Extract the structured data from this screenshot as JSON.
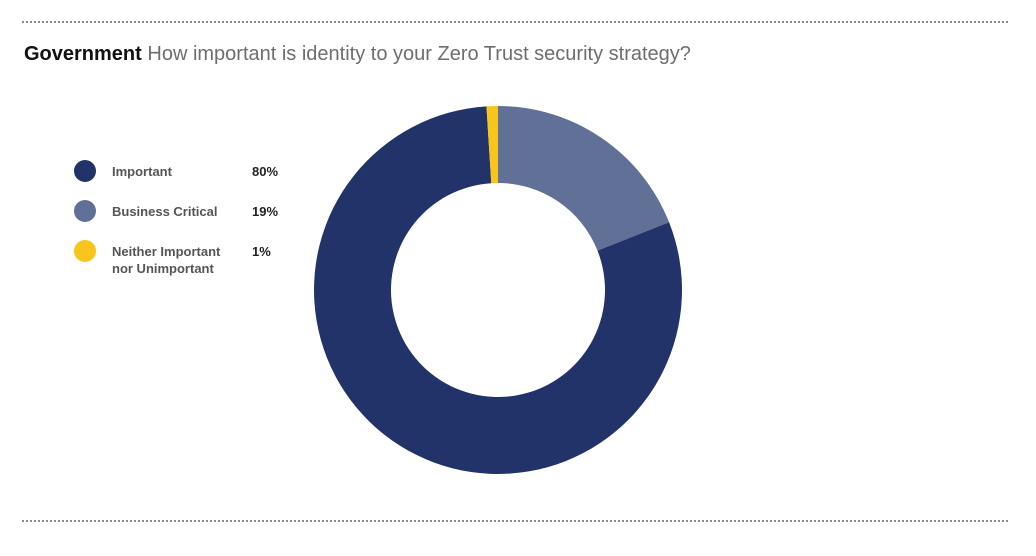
{
  "title": {
    "lead": "Government",
    "question": "How important is identity to your Zero Trust security strategy?"
  },
  "chart_data": {
    "type": "pie",
    "subtype": "donut",
    "title": "Government How important is identity to your Zero Trust security strategy?",
    "legend_position": "left",
    "slices": [
      {
        "label": "Important",
        "value": 80,
        "display": "80%",
        "color": "#223369"
      },
      {
        "label": "Business Critical",
        "value": 19,
        "display": "19%",
        "color": "#617096"
      },
      {
        "label": "Neither Important nor Unimportant",
        "value": 1,
        "display": "1%",
        "color": "#f7c51c"
      }
    ]
  },
  "legend": [
    {
      "label_lines": [
        "Important"
      ],
      "value": "80%",
      "color": "#223369"
    },
    {
      "label_lines": [
        "Business Critical"
      ],
      "value": "19%",
      "color": "#617096"
    },
    {
      "label_lines": [
        "Neither Important",
        "nor Unimportant"
      ],
      "value": "1%",
      "color": "#f7c51c"
    }
  ]
}
